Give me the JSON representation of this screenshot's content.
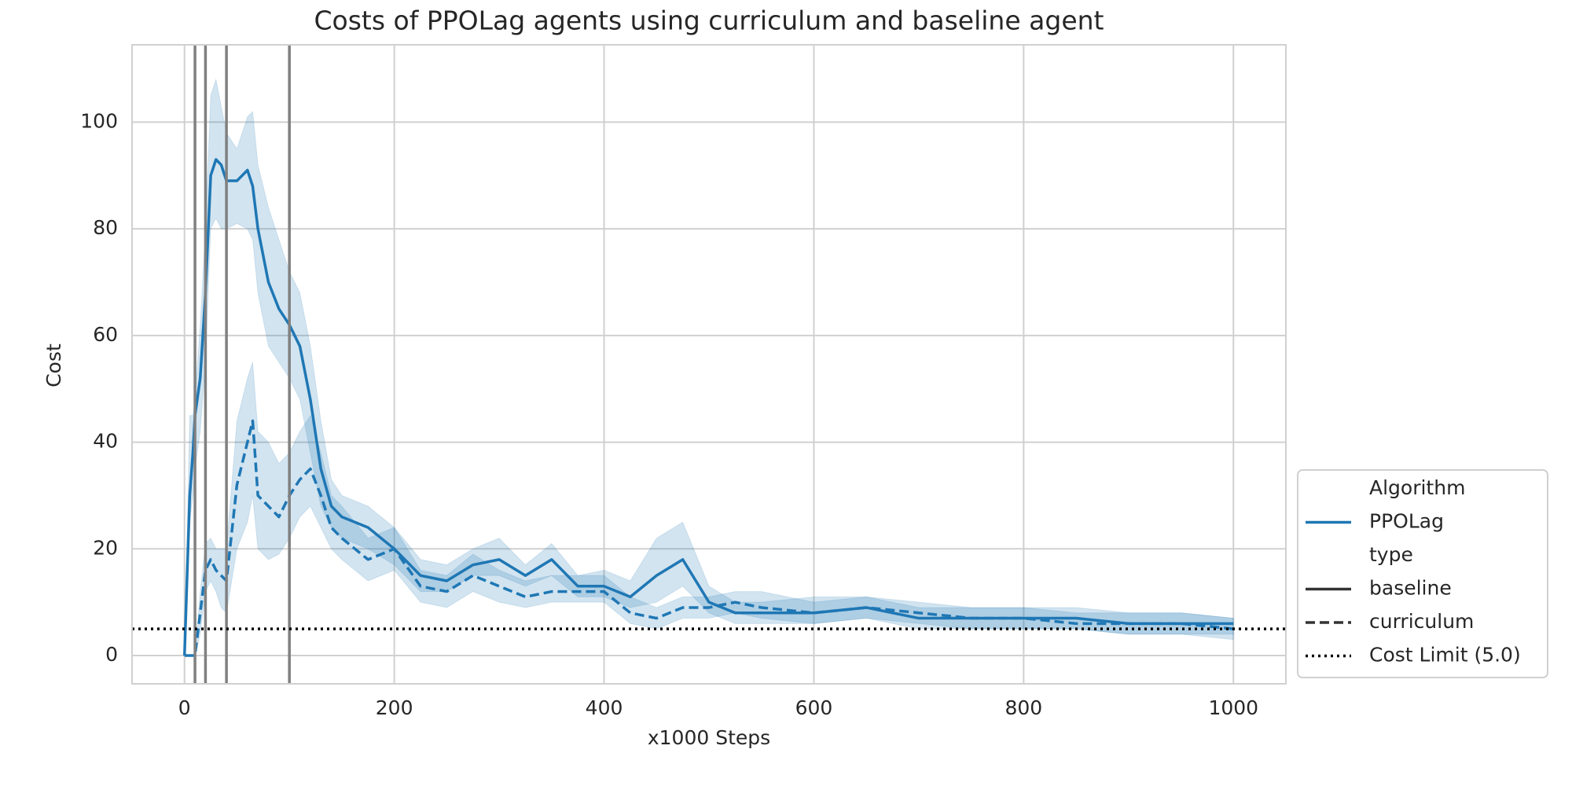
{
  "chart_data": {
    "type": "line",
    "title": "Costs of PPOLag agents using curriculum and baseline agent",
    "x_label": "x1000 Steps",
    "y_label": "Cost",
    "xlim": [
      -50,
      1050
    ],
    "ylim": [
      -5.3,
      114.5
    ],
    "xticks": [
      0,
      200,
      400,
      600,
      800,
      1000
    ],
    "yticks": [
      0,
      20,
      40,
      60,
      80,
      100
    ],
    "grid": true,
    "color": "#1f77b4",
    "legend": {
      "hue_title": "Algorithm",
      "hue": [
        "PPOLag"
      ],
      "style_title": "type",
      "corner": "lower right"
    },
    "vlines": [
      10,
      20,
      40,
      100
    ],
    "vline_color": "#808080",
    "cost_limit": {
      "name": "Cost Limit (5.0)",
      "value": 5
    },
    "x": [
      0,
      5,
      8,
      10,
      15,
      20,
      25,
      30,
      35,
      40,
      50,
      60,
      65,
      70,
      80,
      90,
      100,
      110,
      120,
      130,
      140,
      150,
      175,
      200,
      225,
      250,
      275,
      300,
      325,
      350,
      375,
      400,
      425,
      450,
      475,
      500,
      525,
      550,
      600,
      650,
      700,
      750,
      800,
      850,
      900,
      950,
      1000
    ],
    "series": [
      {
        "name": "baseline",
        "linestyle": "solid",
        "values": [
          0,
          30,
          38,
          45,
          52,
          68,
          90,
          93,
          92,
          89,
          89,
          91,
          88,
          80,
          70,
          65,
          62,
          58,
          48,
          35,
          28,
          26,
          24,
          20,
          15,
          14,
          17,
          18,
          15,
          18,
          13,
          13,
          11,
          15,
          18,
          10,
          8,
          8,
          8,
          9,
          7,
          7,
          7,
          7,
          6,
          6,
          6
        ],
        "lower": [
          0,
          25,
          30,
          35,
          42,
          55,
          80,
          82,
          80,
          80,
          81,
          80,
          78,
          68,
          58,
          55,
          52,
          48,
          38,
          28,
          24,
          22,
          20,
          17,
          12,
          12,
          15,
          15,
          13,
          15,
          11,
          11,
          9,
          10,
          13,
          8,
          6,
          6,
          6,
          7,
          5,
          5,
          5,
          5,
          4,
          4,
          4
        ],
        "upper": [
          0,
          45,
          45,
          48,
          62,
          80,
          105,
          108,
          103,
          98,
          95,
          101,
          102,
          92,
          84,
          78,
          72,
          68,
          58,
          44,
          33,
          30,
          28,
          24,
          18,
          17,
          20,
          22,
          17,
          21,
          15,
          16,
          14,
          22,
          25,
          13,
          10,
          10,
          11,
          11,
          9,
          9,
          9,
          9,
          8,
          8,
          7
        ]
      },
      {
        "name": "curriculum",
        "linestyle": "dashed",
        "values": [
          0,
          0,
          0,
          0,
          8,
          16,
          18,
          16,
          15,
          14,
          32,
          40,
          44,
          30,
          28,
          26,
          30,
          33,
          35,
          30,
          24,
          22,
          18,
          20,
          13,
          12,
          15,
          13,
          11,
          12,
          12,
          12,
          8,
          7,
          9,
          9,
          10,
          9,
          8,
          9,
          8,
          7,
          7,
          6,
          6,
          6,
          5
        ],
        "lower": [
          0,
          0,
          0,
          0,
          4,
          12,
          14,
          12,
          9,
          8,
          20,
          25,
          30,
          20,
          18,
          19,
          22,
          26,
          28,
          24,
          20,
          18,
          14,
          16,
          10,
          9,
          12,
          10,
          9,
          10,
          10,
          10,
          6,
          5,
          7,
          7,
          8,
          7,
          6,
          7,
          6,
          5,
          5,
          5,
          4,
          4,
          3
        ],
        "upper": [
          0,
          0,
          0,
          0,
          12,
          21,
          22,
          20,
          20,
          20,
          44,
          52,
          55,
          42,
          40,
          36,
          38,
          42,
          45,
          38,
          30,
          28,
          22,
          24,
          16,
          15,
          19,
          16,
          14,
          15,
          15,
          15,
          11,
          9,
          11,
          11,
          12,
          12,
          10,
          11,
          10,
          9,
          9,
          8,
          8,
          8,
          7
        ]
      }
    ]
  }
}
